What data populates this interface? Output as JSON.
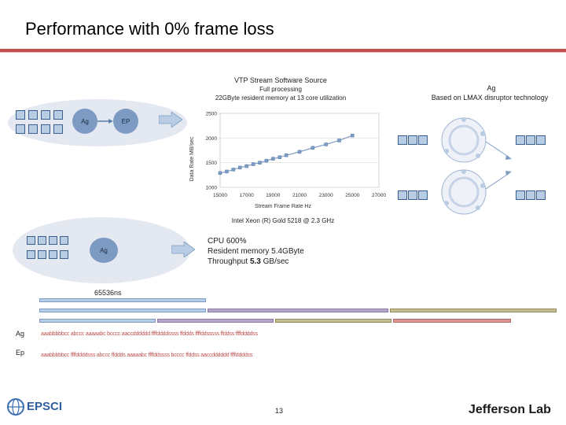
{
  "slide": {
    "title": "Performance with 0% frame loss",
    "page_number": "13"
  },
  "top_chart": {
    "title_lines": [
      "VTP Stream Software Source",
      "Full processing",
      "22GByte resident memory at 13 core utilization"
    ],
    "ylabel": "Data Rate MB/sec",
    "xlabel": "Stream Frame Rate Hz",
    "caption": "Intel Xeon (R) Gold 5218 @ 2.3 GHz"
  },
  "chart_data": {
    "type": "line",
    "title": "VTP Stream Software Source",
    "xlabel": "Stream Frame Rate Hz",
    "ylabel": "Data Rate MB/sec",
    "xlim": [
      15000,
      27000
    ],
    "ylim": [
      1000,
      2500
    ],
    "x_ticks": [
      "15000",
      "17000",
      "19000",
      "21000",
      "23000",
      "25000",
      "27000"
    ],
    "y_ticks": [
      "1000",
      "1500",
      "2000",
      "2500"
    ],
    "series": [
      {
        "x": [
          15000,
          15500,
          16000,
          16500,
          17000,
          17500,
          18000,
          18500,
          19000,
          19500,
          20000,
          21000,
          22000,
          23000,
          24000,
          25000
        ],
        "y": [
          1290,
          1320,
          1360,
          1400,
          1430,
          1470,
          1500,
          1540,
          1580,
          1610,
          1650,
          1720,
          1800,
          1870,
          1950,
          2050
        ]
      }
    ],
    "grid": true,
    "legend": "none"
  },
  "left_diagram": {
    "ag_label": "Ag",
    "ep_label": "EP"
  },
  "right_diagram": {
    "caption_lines": [
      "Ag",
      "Based on LMAX disruptor technology"
    ]
  },
  "mid_diagram": {
    "ag_label": "Ag",
    "stats_lines": [
      "CPU 600%",
      "Resident memory 5.4GByte"
    ],
    "throughput_prefix": "Throughput ",
    "throughput_value": "5.3",
    "throughput_suffix": " GB/sec"
  },
  "timeline": {
    "window_label": "65536ns",
    "row_ag_label": "Ag",
    "row_ep_label": "Ep",
    "ag_sequence": "aaabbbbbcc abccc aaaaabc bcccc aaccdddddd ffffddddssss ffddds ffffddsssss ffddss ffffddddss",
    "ep_sequence": "aaabbbbbcc ffffddddsss abccc ffddds aaaaabc ffffddssss bcccc ffddss aaccdddddd ffffddddss"
  },
  "logos": {
    "epsci": "EPSCI",
    "jlab": "Jefferson Lab"
  },
  "colors": {
    "title_rule": "#c0504d",
    "cell_fill": "#b8cce4",
    "bar_blue": "#b8cce4",
    "bar_purple": "#b4a7c7",
    "bar_olive": "#c4bd97",
    "bar_rose": "#d99694",
    "seq_red": "#c0504d",
    "seq_green": "#4f8a2b"
  }
}
